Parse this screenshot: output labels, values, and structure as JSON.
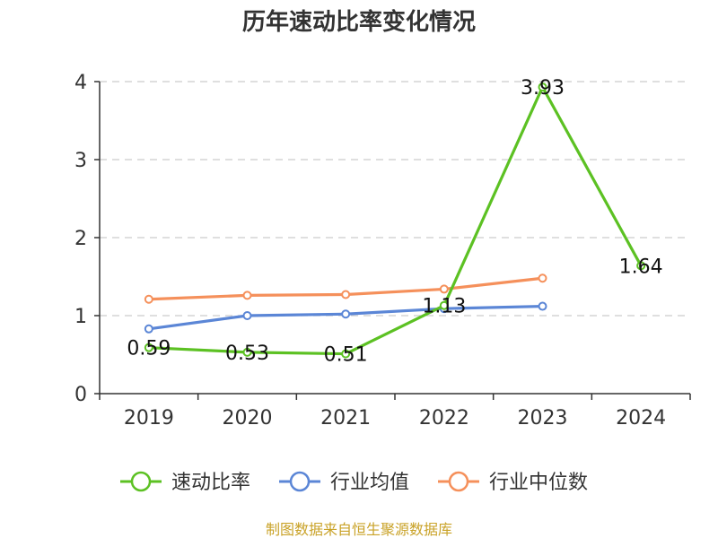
{
  "chart_data": {
    "type": "line",
    "title": "历年速动比率变化情况",
    "categories": [
      "2019",
      "2020",
      "2021",
      "2022",
      "2023",
      "2024"
    ],
    "ylim": [
      0,
      4
    ],
    "yticks": [
      0,
      1,
      2,
      3,
      4
    ],
    "grid": true,
    "legend_position": "bottom",
    "series": [
      {
        "name": "速动比率",
        "color": "#5cc123",
        "values": [
          0.59,
          0.53,
          0.51,
          1.13,
          3.93,
          1.64
        ],
        "labels": [
          "0.59",
          "0.53",
          "0.51",
          "1.13",
          "3.93",
          "1.64"
        ]
      },
      {
        "name": "行业均值",
        "color": "#5b86d6",
        "values": [
          0.83,
          1.0,
          1.02,
          1.09,
          1.12,
          null
        ]
      },
      {
        "name": "行业中位数",
        "color": "#f5905b",
        "values": [
          1.21,
          1.26,
          1.27,
          1.34,
          1.48,
          null
        ]
      }
    ]
  },
  "source_text": "制图数据来自恒生聚源数据库"
}
